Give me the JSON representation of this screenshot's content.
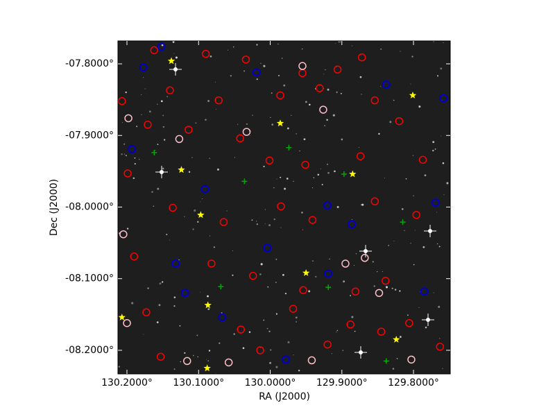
{
  "chart_data": {
    "type": "scatter",
    "xlabel": "RA (J2000)",
    "ylabel": "Dec (J2000)",
    "xlim": [
      130.2126,
      129.7487
    ],
    "ylim": [
      -8.233,
      -7.768
    ],
    "xticks": [
      {
        "value": 130.2,
        "label": "130.2000°"
      },
      {
        "value": 130.1,
        "label": "130.1000°"
      },
      {
        "value": 130.0,
        "label": "130.0000°"
      },
      {
        "value": 129.9,
        "label": "129.9000°"
      },
      {
        "value": 129.8,
        "label": "129.8000°"
      }
    ],
    "yticks": [
      {
        "value": -7.8,
        "label": "-07.8000°"
      },
      {
        "value": -7.9,
        "label": "-07.9000°"
      },
      {
        "value": -8.0,
        "label": "-08.0000°"
      },
      {
        "value": -8.1,
        "label": "-08.1000°"
      },
      {
        "value": -8.2,
        "label": "-08.2000°"
      }
    ],
    "series": [
      {
        "color": "#ff0000",
        "marker": "circle",
        "x": [
          130.162,
          130.09,
          130.034,
          129.955,
          129.906,
          129.872,
          130.207,
          130.14,
          130.072,
          129.986,
          129.931,
          129.854,
          129.82,
          130.171,
          130.114,
          130.042,
          130.001,
          129.951,
          129.874,
          129.787,
          130.199,
          130.136,
          130.065,
          129.985,
          129.941,
          129.854,
          129.796,
          130.19,
          130.082,
          130.024,
          129.954,
          129.881,
          129.839,
          130.173,
          130.041,
          129.968,
          129.888,
          129.806,
          130.153,
          130.014,
          129.92,
          129.845,
          129.763
        ],
        "values": [
          -7.781,
          -7.786,
          -7.794,
          -7.813,
          -7.808,
          -7.791,
          -7.852,
          -7.837,
          -7.851,
          -7.844,
          -7.834,
          -7.851,
          -7.88,
          -7.885,
          -7.892,
          -7.904,
          -7.935,
          -7.941,
          -7.929,
          -7.934,
          -7.953,
          -8.001,
          -8.021,
          -7.999,
          -8.018,
          -7.992,
          -8.011,
          -8.069,
          -8.079,
          -8.096,
          -8.116,
          -8.118,
          -8.103,
          -8.147,
          -8.171,
          -8.142,
          -8.164,
          -8.162,
          -8.209,
          -8.2,
          -8.192,
          -8.174,
          -8.195
        ]
      },
      {
        "color": "#ffc0cb",
        "marker": "circle",
        "x": [
          130.198,
          130.033,
          129.926,
          130.127,
          129.955,
          130.205,
          129.895,
          129.868,
          129.848,
          130.116,
          129.942,
          130.2,
          129.803,
          130.058
        ],
        "values": [
          -7.876,
          -7.895,
          -7.864,
          -7.905,
          -7.803,
          -8.038,
          -8.079,
          -8.071,
          -8.12,
          -8.215,
          -8.214,
          -8.162,
          -8.213,
          -8.217
        ]
      },
      {
        "color": "#0000cc",
        "marker": "dot-circle",
        "x": [
          130.152,
          130.177,
          130.019,
          129.838,
          129.758,
          130.193,
          130.091,
          129.92,
          129.769,
          129.886,
          130.004,
          130.132,
          129.919,
          130.119,
          130.067,
          129.785,
          129.978
        ],
        "values": [
          -7.776,
          -7.805,
          -7.812,
          -7.829,
          -7.848,
          -7.919,
          -7.975,
          -7.998,
          -7.994,
          -8.024,
          -8.057,
          -8.079,
          -8.093,
          -8.12,
          -8.154,
          -8.118,
          -8.213
        ]
      },
      {
        "color": "#00aa00",
        "marker": "plus",
        "x": [
          129.974,
          130.036,
          129.897,
          129.815,
          130.069,
          129.919,
          129.838,
          130.162
        ],
        "values": [
          -7.917,
          -7.964,
          -7.954,
          -8.021,
          -8.111,
          -8.112,
          -8.215,
          -7.924
        ]
      },
      {
        "color": "#ffff00",
        "marker": "star",
        "x": [
          130.138,
          129.801,
          129.986,
          130.124,
          129.885,
          130.097,
          129.95,
          130.087,
          130.207,
          129.824,
          130.088
        ],
        "values": [
          -7.796,
          -7.844,
          -7.883,
          -7.948,
          -7.954,
          -8.011,
          -8.092,
          -8.137,
          -8.154,
          -8.185,
          -8.225
        ]
      }
    ]
  }
}
